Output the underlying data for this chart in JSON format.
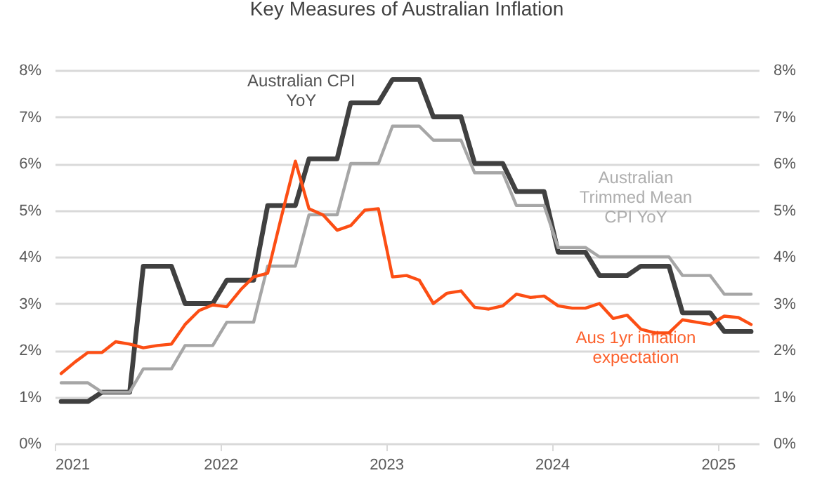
{
  "chart_data": {
    "type": "line",
    "title": "Key Measures of Australian Inflation",
    "x": [
      "2021-01-15",
      "2021-02-15",
      "2021-03-15",
      "2021-04-15",
      "2021-05-15",
      "2021-06-15",
      "2021-07-15",
      "2021-08-15",
      "2021-09-15",
      "2021-10-15",
      "2021-11-15",
      "2021-12-15",
      "2022-01-15",
      "2022-02-15",
      "2022-03-15",
      "2022-04-15",
      "2022-05-15",
      "2022-06-15",
      "2022-07-15",
      "2022-08-15",
      "2022-09-15",
      "2022-10-15",
      "2022-11-15",
      "2022-12-15",
      "2023-01-15",
      "2023-02-15",
      "2023-03-15",
      "2023-04-15",
      "2023-05-15",
      "2023-06-15",
      "2023-07-15",
      "2023-08-15",
      "2023-09-15",
      "2023-10-15",
      "2023-11-15",
      "2023-12-15",
      "2024-01-15",
      "2024-02-15",
      "2024-03-15",
      "2024-04-15",
      "2024-05-15",
      "2024-06-15",
      "2024-07-15",
      "2024-08-15",
      "2024-09-15",
      "2024-10-15",
      "2024-11-15",
      "2024-12-15",
      "2025-01-15",
      "2025-02-15",
      "2025-03-15"
    ],
    "series": [
      {
        "name": "Australian CPI YoY",
        "color": "#404040",
        "values": [
          0.9,
          0.9,
          0.9,
          1.1,
          1.1,
          1.1,
          3.8,
          3.8,
          3.8,
          3.0,
          3.0,
          3.0,
          3.5,
          3.5,
          3.5,
          5.1,
          5.1,
          5.1,
          6.1,
          6.1,
          6.1,
          7.3,
          7.3,
          7.3,
          7.8,
          7.8,
          7.8,
          7.0,
          7.0,
          7.0,
          6.0,
          6.0,
          6.0,
          5.4,
          5.4,
          5.4,
          4.1,
          4.1,
          4.1,
          3.6,
          3.6,
          3.6,
          3.8,
          3.8,
          3.8,
          2.8,
          2.8,
          2.8,
          2.4,
          2.4,
          2.4
        ]
      },
      {
        "name": "Australian Trimmed Mean CPI YoY",
        "color": "#a6a6a6",
        "values": [
          1.3,
          1.3,
          1.3,
          1.1,
          1.1,
          1.1,
          1.6,
          1.6,
          1.6,
          2.1,
          2.1,
          2.1,
          2.6,
          2.6,
          2.6,
          3.8,
          3.8,
          3.8,
          4.9,
          4.9,
          4.9,
          6.0,
          6.0,
          6.0,
          6.8,
          6.8,
          6.8,
          6.5,
          6.5,
          6.5,
          5.8,
          5.8,
          5.8,
          5.1,
          5.1,
          5.1,
          4.2,
          4.2,
          4.2,
          4.0,
          4.0,
          4.0,
          4.0,
          4.0,
          4.0,
          3.6,
          3.6,
          3.6,
          3.2,
          3.2,
          3.2
        ]
      },
      {
        "name": "Aus 1yr inflation expectation",
        "color": "#fc4e14",
        "values": [
          1.5,
          1.75,
          1.95,
          1.95,
          2.18,
          2.13,
          2.05,
          2.1,
          2.13,
          2.55,
          2.85,
          2.97,
          2.93,
          3.3,
          3.57,
          3.65,
          4.85,
          6.05,
          5.03,
          4.9,
          4.57,
          4.67,
          5.0,
          5.03,
          3.57,
          3.6,
          3.5,
          3.0,
          3.22,
          3.27,
          2.92,
          2.88,
          2.95,
          3.2,
          3.13,
          3.16,
          2.95,
          2.9,
          2.9,
          3.0,
          2.68,
          2.75,
          2.45,
          2.37,
          2.37,
          2.65,
          2.6,
          2.55,
          2.73,
          2.7,
          2.55
        ]
      }
    ],
    "xlim": [
      "2021-01-01",
      "2025-04-01"
    ],
    "xticks": [
      {
        "value": "2021-01-01",
        "label": "2021"
      },
      {
        "value": "2022-01-01",
        "label": "2022"
      },
      {
        "value": "2023-01-01",
        "label": "2023"
      },
      {
        "value": "2024-01-01",
        "label": "2024"
      },
      {
        "value": "2025-01-01",
        "label": "2025"
      }
    ],
    "ylim": [
      0,
      8
    ],
    "yticks": [
      {
        "value": 0,
        "label": "0%"
      },
      {
        "value": 1,
        "label": "1%"
      },
      {
        "value": 2,
        "label": "2%"
      },
      {
        "value": 3,
        "label": "3%"
      },
      {
        "value": 4,
        "label": "4%"
      },
      {
        "value": 5,
        "label": "5%"
      },
      {
        "value": 6,
        "label": "6%"
      },
      {
        "value": 7,
        "label": "7%"
      },
      {
        "value": 8,
        "label": "8%"
      }
    ],
    "y2lim": [
      0,
      8
    ],
    "y2ticks": [
      {
        "value": 0,
        "label": "0%"
      },
      {
        "value": 1,
        "label": "1%"
      },
      {
        "value": 2,
        "label": "2%"
      },
      {
        "value": 3,
        "label": "3%"
      },
      {
        "value": 4,
        "label": "4%"
      },
      {
        "value": 5,
        "label": "5%"
      },
      {
        "value": 6,
        "label": "6%"
      },
      {
        "value": 7,
        "label": "7%"
      },
      {
        "value": 8,
        "label": "8%"
      }
    ],
    "grid": "y",
    "legend": false
  }
}
